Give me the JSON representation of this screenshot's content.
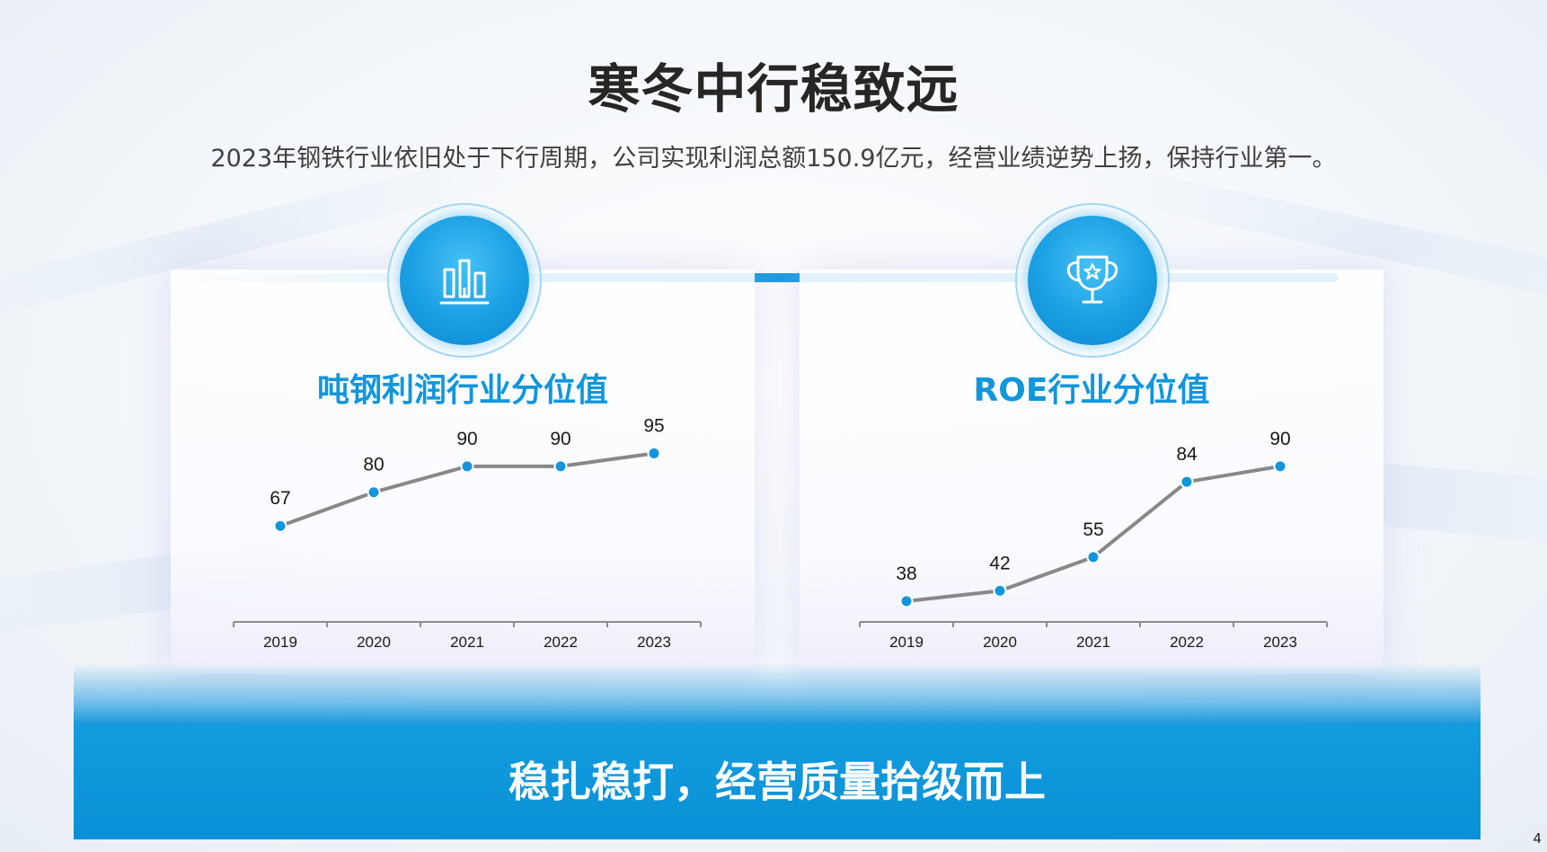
{
  "slide": {
    "title": "寒冬中行稳致远",
    "subtitle": "2023年钢铁行业依旧处于下行周期，公司实现利润总额150.9亿元，经营业绩逆势上扬，保持行业第一。",
    "banner": "稳扎稳打，经营质量拾级而上",
    "page_number": "4"
  },
  "icons": {
    "left": "bar-chart-icon",
    "right": "trophy-icon"
  },
  "colors": {
    "accent": "#1296db",
    "line": "#888888",
    "point": "#1296db",
    "banner": "#1296db"
  },
  "chart_data": [
    {
      "type": "line",
      "title": "吨钢利润行业分位值",
      "categories": [
        "2019",
        "2020",
        "2021",
        "2022",
        "2023"
      ],
      "values": [
        67,
        80,
        90,
        90,
        95
      ],
      "labels": [
        "67",
        "80",
        "90",
        "90",
        "95"
      ],
      "ylim": [
        30,
        100
      ],
      "xlabel": "",
      "ylabel": "",
      "grid": false
    },
    {
      "type": "line",
      "title": "ROE行业分位值",
      "categories": [
        "2019",
        "2020",
        "2021",
        "2022",
        "2023"
      ],
      "values": [
        38,
        42,
        55,
        84,
        90
      ],
      "labels": [
        "38",
        "42",
        "55",
        "84",
        "90"
      ],
      "ylim": [
        30,
        100
      ],
      "xlabel": "",
      "ylabel": "",
      "grid": false
    }
  ]
}
